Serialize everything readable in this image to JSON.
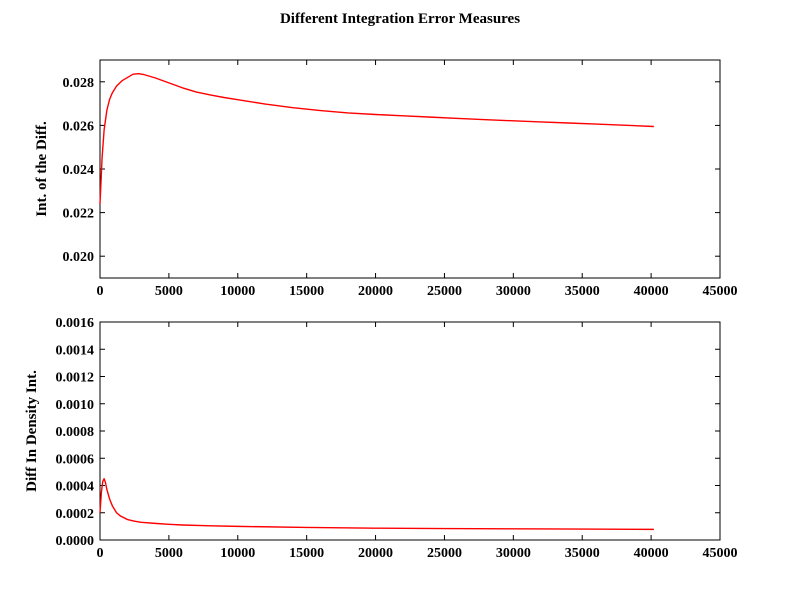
{
  "figure": {
    "title": "Different Integration Error Measures"
  },
  "chart_data": [
    {
      "type": "line",
      "title": "",
      "xlabel": "",
      "ylabel": "Int. of the Diff.",
      "xlim": [
        0,
        45000
      ],
      "ylim": [
        0.019,
        0.029
      ],
      "x_ticks": [
        0,
        5000,
        10000,
        15000,
        20000,
        25000,
        30000,
        35000,
        40000,
        45000
      ],
      "y_ticks": [
        0.02,
        0.022,
        0.024,
        0.026,
        0.028
      ],
      "x_tick_labels": [
        "0",
        "5000",
        "10000",
        "15000",
        "20000",
        "25000",
        "30000",
        "35000",
        "40000",
        "45000"
      ],
      "y_tick_labels": [
        "0.020",
        "0.022",
        "0.024",
        "0.026",
        "0.028"
      ],
      "grid": false,
      "series": [
        {
          "color": "#ff0000",
          "x": [
            0,
            150,
            300,
            500,
            700,
            900,
            1200,
            1600,
            2000,
            2400,
            2800,
            3200,
            4000,
            5000,
            6000,
            7000,
            8000,
            9000,
            10000,
            12000,
            14000,
            16000,
            18000,
            20000,
            22000,
            24000,
            26000,
            28000,
            30000,
            32000,
            34000,
            36000,
            38000,
            40200
          ],
          "y": [
            0.0224,
            0.0245,
            0.0258,
            0.0267,
            0.0272,
            0.0275,
            0.0278,
            0.02805,
            0.0282,
            0.02835,
            0.02837,
            0.02833,
            0.02818,
            0.02795,
            0.02772,
            0.02753,
            0.0274,
            0.02728,
            0.02718,
            0.02698,
            0.02681,
            0.02668,
            0.02657,
            0.0265,
            0.02644,
            0.02638,
            0.02632,
            0.02626,
            0.02621,
            0.02616,
            0.02611,
            0.02606,
            0.02601,
            0.02595
          ]
        }
      ]
    },
    {
      "type": "line",
      "title": "",
      "xlabel": "",
      "ylabel": "Diff In Density Int.",
      "xlim": [
        0,
        45000
      ],
      "ylim": [
        0,
        0.0016
      ],
      "x_ticks": [
        0,
        5000,
        10000,
        15000,
        20000,
        25000,
        30000,
        35000,
        40000,
        45000
      ],
      "y_ticks": [
        0,
        0.0002,
        0.0004,
        0.0006,
        0.0008,
        0.001,
        0.0012,
        0.0014,
        0.0016
      ],
      "x_tick_labels": [
        "0",
        "5000",
        "10000",
        "15000",
        "20000",
        "25000",
        "30000",
        "35000",
        "40000",
        "45000"
      ],
      "y_tick_labels": [
        "0.0000",
        "0.0002",
        "0.0004",
        "0.0006",
        "0.0008",
        "0.0010",
        "0.0012",
        "0.0014",
        "0.0016"
      ],
      "grid": false,
      "series": [
        {
          "color": "#ff0000",
          "x": [
            0,
            100,
            200,
            300,
            400,
            500,
            700,
            900,
            1200,
            1500,
            2000,
            2500,
            3000,
            4000,
            5000,
            6000,
            8000,
            10000,
            15000,
            20000,
            25000,
            30000,
            35000,
            40200
          ],
          "y": [
            0.0002,
            0.00035,
            0.00043,
            0.00045,
            0.00042,
            0.00037,
            0.0003,
            0.00025,
            0.0002,
            0.000175,
            0.00015,
            0.000138,
            0.00013,
            0.000122,
            0.000115,
            0.00011,
            0.000104,
            0.0001,
            9.2e-05,
            8.7e-05,
            8.4e-05,
            8.2e-05,
            8e-05,
            7.8e-05
          ]
        }
      ]
    }
  ]
}
